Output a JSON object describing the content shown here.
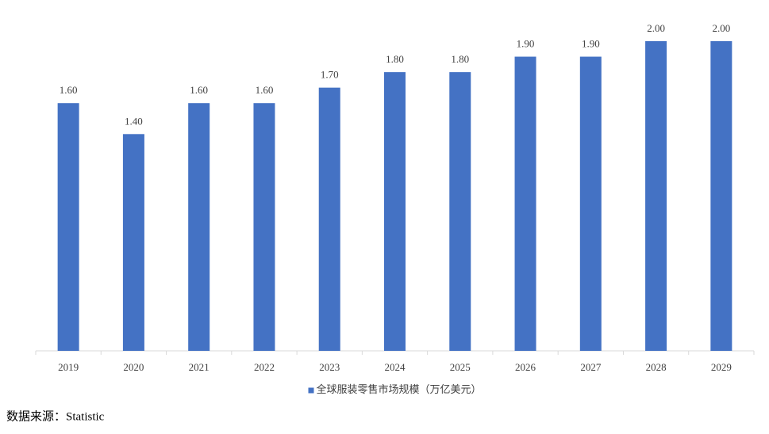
{
  "chart_data": {
    "type": "bar",
    "categories": [
      "2019",
      "2020",
      "2021",
      "2022",
      "2023",
      "2024",
      "2025",
      "2026",
      "2027",
      "2028",
      "2029"
    ],
    "series": [
      {
        "name": "全球服装零售市场规模（万亿美元）",
        "color": "#4472c4",
        "values": [
          1.6,
          1.4,
          1.6,
          1.6,
          1.7,
          1.8,
          1.8,
          1.9,
          1.9,
          2.0,
          2.0
        ],
        "value_labels": [
          "1.60",
          "1.40",
          "1.60",
          "1.60",
          "1.70",
          "1.80",
          "1.80",
          "1.90",
          "1.90",
          "2.00",
          "2.00"
        ]
      }
    ],
    "ylim": [
      0,
      2.0
    ],
    "legend": "bottom",
    "source": "数据来源：Statistic"
  }
}
